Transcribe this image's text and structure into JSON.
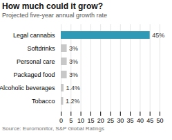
{
  "chart_data": {
    "type": "bar",
    "orientation": "horizontal",
    "title": "How much could it grow?",
    "subtitle": "Projected five-year annual growth rate",
    "caption": "Source: Euromonitor, S&P Global Ratings",
    "categories": [
      "Tobacco",
      "Alcoholic beverages",
      "Packaged food",
      "Personal care",
      "Softdrinks",
      "Legal cannabis"
    ],
    "values": [
      1.2,
      1.4,
      3,
      3,
      3,
      45
    ],
    "value_labels": [
      "1.2%",
      "1.4%",
      "3%",
      "3%",
      "3%",
      "45%"
    ],
    "colors": [
      "#c8c8c8",
      "#c8c8c8",
      "#c8c8c8",
      "#c8c8c8",
      "#c8c8c8",
      "#2e9ab5"
    ],
    "xlim": [
      0,
      50
    ],
    "xticks": [
      0,
      5,
      10,
      15,
      20,
      25,
      30,
      35,
      40,
      45,
      50
    ],
    "grid": true,
    "data_labels": true
  }
}
